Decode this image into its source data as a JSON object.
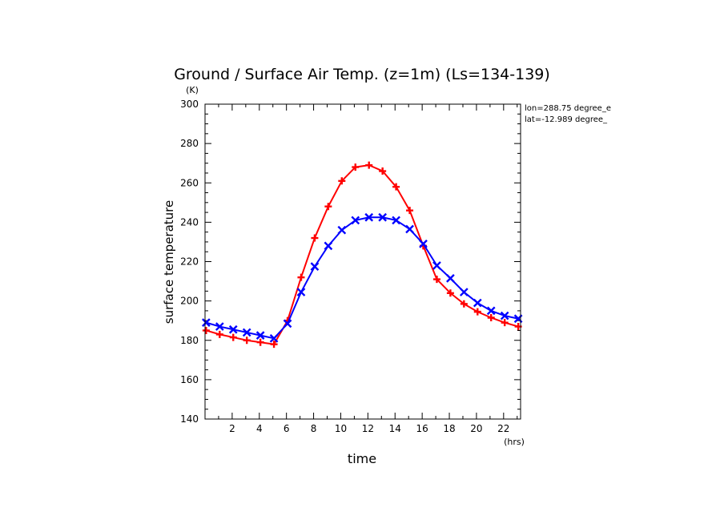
{
  "chart_data": {
    "type": "line",
    "title": "Ground / Surface Air Temp. (z=1m) (Ls=134-139)",
    "xlabel": "time",
    "ylabel": "surface temperature",
    "x_unit": "(hrs)",
    "y_unit": "(K)",
    "xlim": [
      0,
      23.25
    ],
    "ylim": [
      140,
      300
    ],
    "xticks": [
      2,
      4,
      6,
      8,
      10,
      12,
      14,
      16,
      18,
      20,
      22
    ],
    "yticks": [
      140,
      160,
      180,
      200,
      220,
      240,
      260,
      280,
      300
    ],
    "annotations": [
      "lon=288.75 degree_e",
      "lat=-12.989 degree_"
    ],
    "grid": false,
    "x": [
      0.08,
      1.08,
      2.08,
      3.08,
      4.08,
      5.08,
      6.08,
      7.08,
      8.08,
      9.08,
      10.08,
      11.08,
      12.08,
      13.08,
      14.08,
      15.08,
      16.08,
      17.08,
      18.08,
      19.08,
      20.08,
      21.08,
      22.08,
      23.08
    ],
    "series": [
      {
        "color": "#ff0000",
        "marker": "plus",
        "values": [
          185,
          183,
          181.5,
          180,
          179,
          178,
          190,
          212,
          232,
          248,
          261,
          268,
          269,
          266,
          258,
          246,
          228,
          211,
          204,
          198.5,
          194.5,
          191.5,
          189,
          187
        ]
      },
      {
        "color": "#0000ff",
        "marker": "x",
        "values": [
          189,
          187,
          185.5,
          184,
          182.5,
          181,
          188.5,
          204.5,
          217.5,
          228,
          236,
          241,
          242.5,
          242.5,
          241,
          236.5,
          229,
          218,
          211.5,
          204.5,
          199,
          195,
          192.5,
          191
        ]
      }
    ]
  }
}
